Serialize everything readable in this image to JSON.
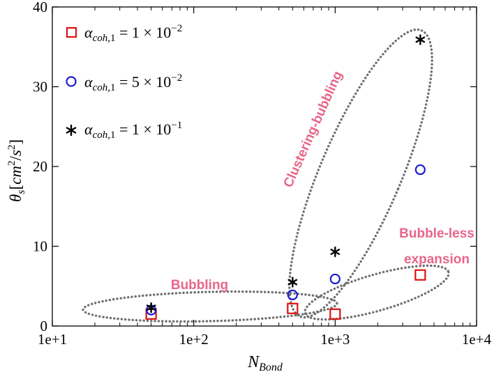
{
  "chart_data": {
    "type": "scatter",
    "xscale": "log",
    "xlim": [
      10,
      10000
    ],
    "ylim": [
      0,
      40
    ],
    "xticks": [
      "1e+1",
      "1e+2",
      "1e+3",
      "1e+4"
    ],
    "yticks": [
      "0",
      "10",
      "20",
      "30",
      "40"
    ],
    "xlabel": "N_Bond",
    "ylabel": "θ_s [cm²/s²]",
    "grid": false,
    "legend_position": "top-left",
    "series": [
      {
        "name": "α_coh,1 = 1 × 10⁻²",
        "marker": "square",
        "color": "#dd1111",
        "points": [
          [
            50,
            1.5
          ],
          [
            500,
            2.2
          ],
          [
            1000,
            1.5
          ],
          [
            4000,
            6.4
          ]
        ]
      },
      {
        "name": "α_coh,1 = 5 × 10⁻²",
        "marker": "circle",
        "color": "#1a1ad6",
        "points": [
          [
            50,
            2.0
          ],
          [
            500,
            3.9
          ],
          [
            1000,
            5.9
          ],
          [
            4000,
            19.6
          ]
        ]
      },
      {
        "name": "α_coh,1 = 1 × 10⁻¹",
        "marker": "asterisk",
        "color": "#000000",
        "points": [
          [
            50,
            2.3
          ],
          [
            500,
            5.5
          ],
          [
            1000,
            9.3
          ],
          [
            4000,
            35.9
          ]
        ]
      }
    ],
    "annotations": [
      {
        "text": "Bubbling",
        "color": "#e8658a"
      },
      {
        "text": "Clustering-bubbling",
        "color": "#e8658a"
      },
      {
        "text": "Bubble-less",
        "color": "#e8658a"
      },
      {
        "text": "expansion",
        "color": "#e8658a"
      }
    ]
  }
}
